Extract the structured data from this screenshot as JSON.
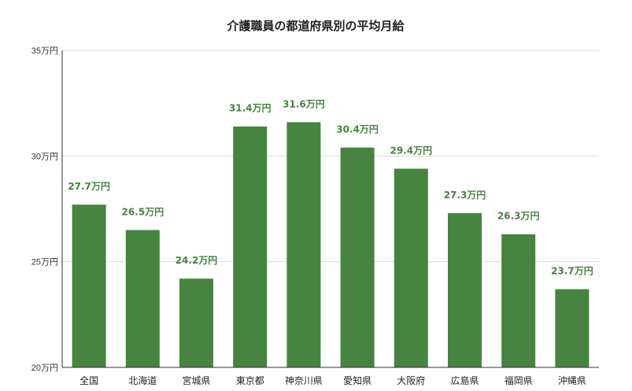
{
  "chart_data": {
    "type": "bar",
    "title": "介護職員の都道府県別の平均月給",
    "xlabel": "",
    "ylabel": "",
    "unit": "万円",
    "categories": [
      "全国",
      "北海道",
      "宮城県",
      "東京都",
      "神奈川県",
      "愛知県",
      "大阪府",
      "広島県",
      "福岡県",
      "沖縄県"
    ],
    "series": [
      {
        "values": [
          27.7,
          26.5,
          24.2,
          31.4,
          31.6,
          30.4,
          29.4,
          27.3,
          26.3,
          23.7
        ],
        "data_labels": [
          "27.7万円",
          "26.5万円",
          "24.2万円",
          "31.4万円",
          "31.6万円",
          "30.4万円",
          "29.4万円",
          "27.3万円",
          "26.3万円",
          "23.7万円"
        ],
        "color": "#46843f"
      }
    ],
    "ylim": [
      20,
      35
    ],
    "yticks": [
      20,
      25,
      30,
      35
    ],
    "ytick_labels": [
      "20万円",
      "25万円",
      "30万円",
      "35万円"
    ],
    "grid": true,
    "legend": "none",
    "label_color": "#46843f"
  }
}
